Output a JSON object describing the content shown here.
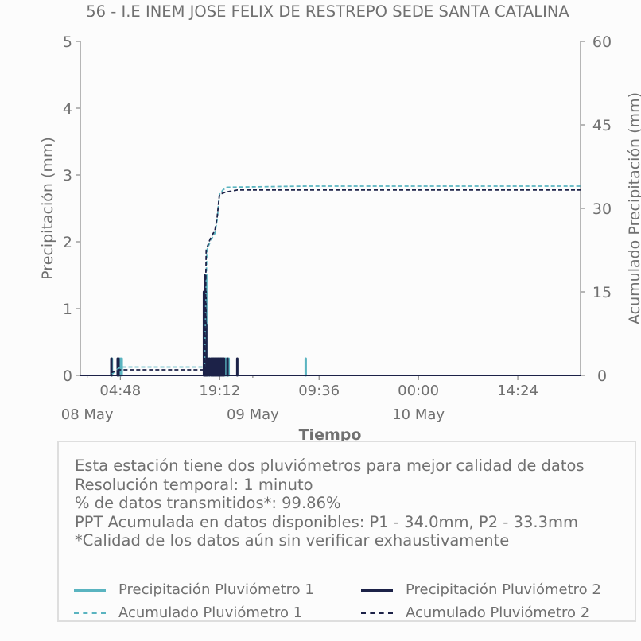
{
  "chart_data": {
    "type": "line",
    "title": "56 - I.E INEM JOSE FELIX DE RESTREPO SEDE SANTA CATALINA",
    "xlabel": "Tiempo",
    "ylabel_left": "Precipitación (mm)",
    "ylabel_right": "Acumulado Precipitación (mm)",
    "x_range": [
      "2024-05-07 23:00",
      "2024-05-10 23:30"
    ],
    "x_ticks": [
      {
        "t": "2024-05-08 04:48",
        "label": "04:48"
      },
      {
        "t": "2024-05-08 19:12",
        "label": "19:12"
      },
      {
        "t": "2024-05-09 09:36",
        "label": "09:36"
      },
      {
        "t": "2024-05-10 00:00",
        "label": "00:00"
      },
      {
        "t": "2024-05-10 14:24",
        "label": "14:24"
      }
    ],
    "date_labels": [
      {
        "t": "2024-05-08 00:00",
        "label": "08 May"
      },
      {
        "t": "2024-05-09 00:00",
        "label": "09 May"
      },
      {
        "t": "2024-05-10 00:00",
        "label": "10 May"
      }
    ],
    "ylim_left": [
      0,
      5
    ],
    "yticks_left": [
      0,
      1,
      2,
      3,
      4,
      5
    ],
    "ylim_right": [
      0,
      60
    ],
    "yticks_right": [
      0,
      15,
      30,
      45,
      60
    ],
    "grid": false,
    "colors": {
      "p1": "#5ab4c0",
      "p2": "#1c2248"
    },
    "series": [
      {
        "name": "Precipitación Pluviómetro 1",
        "axis": "left",
        "style": "solid",
        "color": "#5ab4c0",
        "points": [
          [
            "2024-05-08 03:35",
            0.25
          ],
          [
            "2024-05-08 04:45",
            0.25
          ],
          [
            "2024-05-08 05:00",
            0.25
          ],
          [
            "2024-05-08 17:05",
            1.25
          ],
          [
            "2024-05-08 17:15",
            1.5
          ],
          [
            "2024-05-08 17:22",
            0.25
          ],
          [
            "2024-05-08 17:40",
            0.25
          ],
          [
            "2024-05-08 18:00",
            0.25
          ],
          [
            "2024-05-08 18:20",
            0.25
          ],
          [
            "2024-05-08 18:40",
            0.25
          ],
          [
            "2024-05-08 19:00",
            0.25
          ],
          [
            "2024-05-08 19:20",
            0.25
          ],
          [
            "2024-05-08 19:40",
            0.25
          ],
          [
            "2024-05-08 20:05",
            0.25
          ],
          [
            "2024-05-08 20:30",
            0.25
          ],
          [
            "2024-05-09 07:40",
            0.25
          ]
        ]
      },
      {
        "name": "Precipitación Pluviómetro 2",
        "axis": "left",
        "style": "solid",
        "color": "#1c2248",
        "points": [
          [
            "2024-05-08 03:30",
            0.25
          ],
          [
            "2024-05-08 04:25",
            0.25
          ],
          [
            "2024-05-08 04:32",
            0.25
          ],
          [
            "2024-05-08 16:55",
            1.25
          ],
          [
            "2024-05-08 17:00",
            1.0
          ],
          [
            "2024-05-08 17:05",
            1.5
          ],
          [
            "2024-05-08 17:10",
            1.25
          ],
          [
            "2024-05-08 17:15",
            0.75
          ],
          [
            "2024-05-08 17:20",
            0.25
          ],
          [
            "2024-05-08 17:30",
            0.25
          ],
          [
            "2024-05-08 17:45",
            0.25
          ],
          [
            "2024-05-08 18:00",
            0.25
          ],
          [
            "2024-05-08 18:10",
            0.25
          ],
          [
            "2024-05-08 18:20",
            0.25
          ],
          [
            "2024-05-08 18:30",
            0.25
          ],
          [
            "2024-05-08 18:40",
            0.25
          ],
          [
            "2024-05-08 18:50",
            0.25
          ],
          [
            "2024-05-08 19:00",
            0.25
          ],
          [
            "2024-05-08 19:10",
            0.25
          ],
          [
            "2024-05-08 19:20",
            0.25
          ],
          [
            "2024-05-08 19:30",
            0.25
          ],
          [
            "2024-05-08 19:40",
            0.25
          ],
          [
            "2024-05-08 19:50",
            0.25
          ],
          [
            "2024-05-08 20:20",
            0.25
          ],
          [
            "2024-05-08 21:45",
            0.25
          ]
        ]
      },
      {
        "name": "Acumulado Pluviómetro 1",
        "axis": "right",
        "style": "dashed",
        "color": "#5ab4c0",
        "points": [
          [
            "2024-05-08 03:35",
            0.25
          ],
          [
            "2024-05-08 04:45",
            1.5
          ],
          [
            "2024-05-08 17:00",
            1.5
          ],
          [
            "2024-05-08 17:20",
            22.5
          ],
          [
            "2024-05-08 17:40",
            23.5
          ],
          [
            "2024-05-08 18:00",
            24.5
          ],
          [
            "2024-05-08 18:30",
            25.5
          ],
          [
            "2024-05-08 18:50",
            28.0
          ],
          [
            "2024-05-08 19:10",
            32.5
          ],
          [
            "2024-05-08 19:40",
            33.3
          ],
          [
            "2024-05-08 20:15",
            33.8
          ],
          [
            "2024-05-09 07:40",
            34.0
          ],
          [
            "2024-05-10 23:30",
            34.0
          ]
        ]
      },
      {
        "name": "Acumulado Pluviómetro 2",
        "axis": "right",
        "style": "dashed",
        "color": "#1c2248",
        "points": [
          [
            "2024-05-08 03:30",
            0.5
          ],
          [
            "2024-05-08 04:30",
            1.0
          ],
          [
            "2024-05-08 17:00",
            1.0
          ],
          [
            "2024-05-08 17:15",
            22.5
          ],
          [
            "2024-05-08 17:40",
            24.0
          ],
          [
            "2024-05-08 18:00",
            25.0
          ],
          [
            "2024-05-08 18:30",
            26.0
          ],
          [
            "2024-05-08 18:50",
            28.5
          ],
          [
            "2024-05-08 19:10",
            32.5
          ],
          [
            "2024-05-08 20:00",
            32.9
          ],
          [
            "2024-05-08 21:45",
            33.3
          ],
          [
            "2024-05-10 23:30",
            33.3
          ]
        ]
      }
    ]
  },
  "info": {
    "line1": "Esta estación tiene dos pluviómetros para mejor calidad de datos",
    "line2": "Resolución temporal: 1 minuto",
    "line3": "% de datos transmitidos*: 99.86%",
    "line4": "PPT Acumulada en datos disponibles: P1 - 34.0mm, P2 - 33.3mm",
    "line5": "*Calidad de los datos aún sin verificar exhaustivamente"
  },
  "legend": {
    "p1": "Precipitación Pluviómetro 1",
    "p2": "Precipitación Pluviómetro 2",
    "a1": "Acumulado Pluviómetro 1",
    "a2": "Acumulado Pluviómetro 2"
  }
}
